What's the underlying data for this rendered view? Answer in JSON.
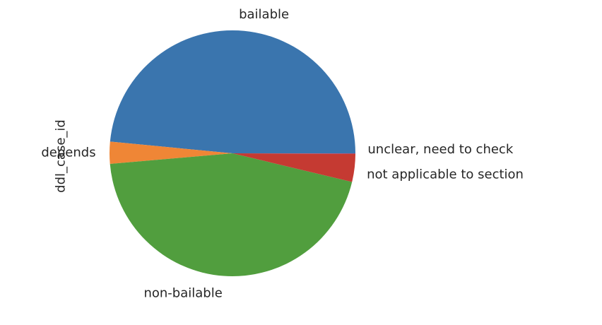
{
  "chart_data": {
    "type": "pie",
    "ylabel": "ddl_case_id",
    "categories": [
      "bailable",
      "depends",
      "non-bailable",
      "not applicable to section",
      "unclear, need to check"
    ],
    "values": [
      48.5,
      2.9,
      44.9,
      3.7,
      0.04
    ],
    "colors": [
      "#3a75ae",
      "#ef8636",
      "#519e3e",
      "#c53a32",
      "#8d69b8"
    ],
    "start_angle_deg": 0,
    "direction": "counterclockwise"
  }
}
